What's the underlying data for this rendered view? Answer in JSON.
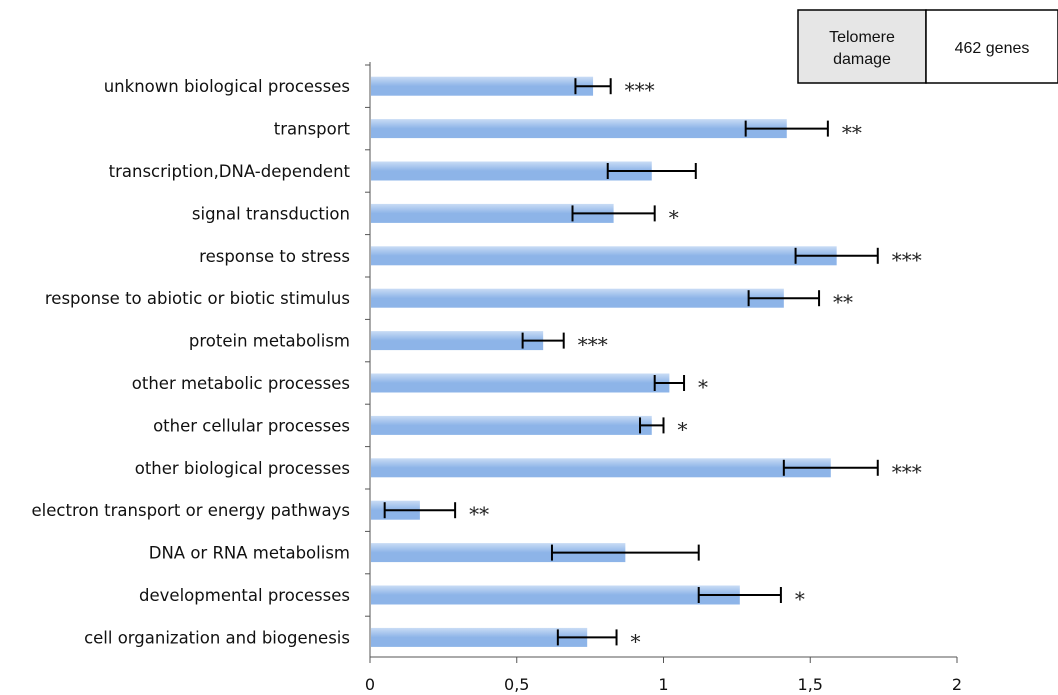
{
  "legend": {
    "label": "Telomere damage",
    "label_lines": [
      "Telomere",
      "damage"
    ],
    "value": "462 genes"
  },
  "chart_data": {
    "type": "bar",
    "orientation": "horizontal",
    "categories": [
      "unknown biological processes",
      "transport",
      "transcription,DNA-dependent",
      "signal transduction",
      "response to stress",
      "response to abiotic or biotic stimulus",
      "protein metabolism",
      "other metabolic processes",
      "other cellular processes",
      "other biological processes",
      "electron transport or energy pathways",
      "DNA or RNA metabolism",
      "developmental processes",
      "cell organization and biogenesis"
    ],
    "values": [
      0.76,
      1.42,
      0.96,
      0.83,
      1.59,
      1.41,
      0.59,
      1.02,
      0.96,
      1.57,
      0.17,
      0.87,
      1.26,
      0.74
    ],
    "errors": [
      0.06,
      0.14,
      0.15,
      0.14,
      0.14,
      0.12,
      0.07,
      0.05,
      0.04,
      0.16,
      0.12,
      0.25,
      0.14,
      0.1
    ],
    "significance": [
      "***",
      "**",
      "",
      "*",
      "***",
      "**",
      "***",
      "*",
      "*",
      "***",
      "**",
      "",
      "*",
      "*"
    ],
    "xlim": [
      0,
      2
    ],
    "xticks": [
      "0",
      "0,5",
      "1",
      "1,5",
      "2"
    ],
    "xtick_values": [
      0,
      0.5,
      1,
      1.5,
      2
    ],
    "bar_color": "#8db4e8",
    "bar_color_light": "#c9dcf5",
    "error_color": "#000000",
    "grid": false
  }
}
